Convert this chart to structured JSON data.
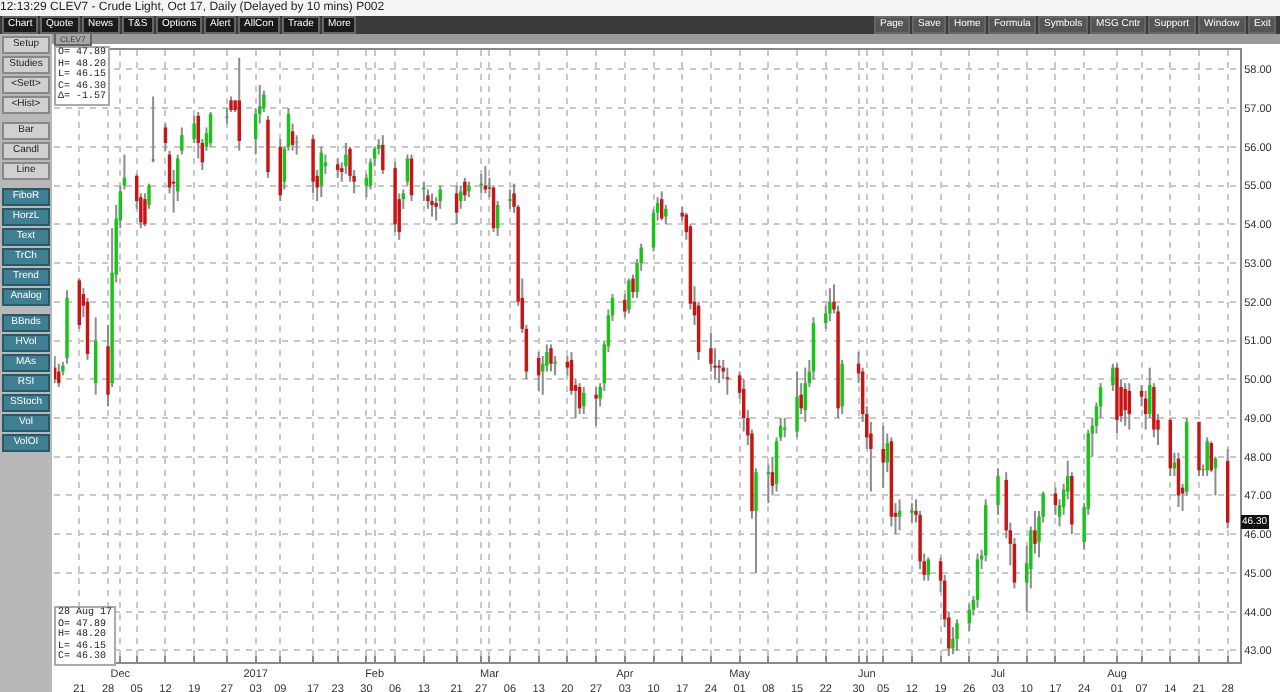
{
  "chart_data": {
    "type": "candlestick",
    "title": "CLEV7 - Crude Light, Oct 17, Daily (Delayed by 10 mins)",
    "x": [
      "2016-11-15",
      "2016-11-16",
      "2016-11-17",
      "2016-11-18",
      "2016-11-21",
      "2016-11-22",
      "2016-11-23",
      "2016-11-25",
      "2016-11-28",
      "2016-11-29",
      "2016-11-30",
      "2016-12-01",
      "2016-12-02",
      "2016-12-05",
      "2016-12-06",
      "2016-12-07",
      "2016-12-08",
      "2016-12-09",
      "2016-12-12",
      "2016-12-13",
      "2016-12-14",
      "2016-12-15",
      "2016-12-16",
      "2016-12-19",
      "2016-12-20",
      "2016-12-21",
      "2016-12-22",
      "2016-12-23",
      "2016-12-27",
      "2016-12-28",
      "2016-12-29",
      "2016-12-30",
      "2017-01-03",
      "2017-01-04",
      "2017-01-05",
      "2017-01-06",
      "2017-01-09",
      "2017-01-10",
      "2017-01-11",
      "2017-01-12",
      "2017-01-13",
      "2017-01-17",
      "2017-01-18",
      "2017-01-19",
      "2017-01-20",
      "2017-01-23",
      "2017-01-24",
      "2017-01-25",
      "2017-01-26",
      "2017-01-27",
      "2017-01-30",
      "2017-01-31",
      "2017-02-01",
      "2017-02-02",
      "2017-02-03",
      "2017-02-06",
      "2017-02-07",
      "2017-02-08",
      "2017-02-09",
      "2017-02-10",
      "2017-02-13",
      "2017-02-14",
      "2017-02-15",
      "2017-02-16",
      "2017-02-17",
      "2017-02-21",
      "2017-02-22",
      "2017-02-23",
      "2017-02-24",
      "2017-02-27",
      "2017-02-28",
      "2017-03-01",
      "2017-03-02",
      "2017-03-03",
      "2017-03-06",
      "2017-03-07",
      "2017-03-08",
      "2017-03-09",
      "2017-03-10",
      "2017-03-13",
      "2017-03-14",
      "2017-03-15",
      "2017-03-16",
      "2017-03-17",
      "2017-03-20",
      "2017-03-21",
      "2017-03-22",
      "2017-03-23",
      "2017-03-24",
      "2017-03-27",
      "2017-03-28",
      "2017-03-29",
      "2017-03-30",
      "2017-03-31",
      "2017-04-03",
      "2017-04-04",
      "2017-04-05",
      "2017-04-06",
      "2017-04-07",
      "2017-04-10",
      "2017-04-11",
      "2017-04-12",
      "2017-04-13",
      "2017-04-17",
      "2017-04-18",
      "2017-04-19",
      "2017-04-20",
      "2017-04-21",
      "2017-04-24",
      "2017-04-25",
      "2017-04-26",
      "2017-04-27",
      "2017-04-28",
      "2017-05-01",
      "2017-05-02",
      "2017-05-03",
      "2017-05-04",
      "2017-05-05",
      "2017-05-08",
      "2017-05-09",
      "2017-05-10",
      "2017-05-11",
      "2017-05-12",
      "2017-05-15",
      "2017-05-16",
      "2017-05-17",
      "2017-05-18",
      "2017-05-19",
      "2017-05-22",
      "2017-05-23",
      "2017-05-24",
      "2017-05-25",
      "2017-05-26",
      "2017-05-30",
      "2017-05-31",
      "2017-06-01",
      "2017-06-02",
      "2017-06-05",
      "2017-06-06",
      "2017-06-07",
      "2017-06-08",
      "2017-06-09",
      "2017-06-12",
      "2017-06-13",
      "2017-06-14",
      "2017-06-15",
      "2017-06-16",
      "2017-06-19",
      "2017-06-20",
      "2017-06-21",
      "2017-06-22",
      "2017-06-23",
      "2017-06-26",
      "2017-06-27",
      "2017-06-28",
      "2017-06-29",
      "2017-06-30",
      "2017-07-03",
      "2017-07-05",
      "2017-07-06",
      "2017-07-07",
      "2017-07-10",
      "2017-07-11",
      "2017-07-12",
      "2017-07-13",
      "2017-07-14",
      "2017-07-17",
      "2017-07-18",
      "2017-07-19",
      "2017-07-20",
      "2017-07-21",
      "2017-07-24",
      "2017-07-25",
      "2017-07-26",
      "2017-07-27",
      "2017-07-28",
      "2017-07-31",
      "2017-08-01",
      "2017-08-02",
      "2017-08-03",
      "2017-08-04",
      "2017-08-07",
      "2017-08-08",
      "2017-08-09",
      "2017-08-10",
      "2017-08-11",
      "2017-08-14",
      "2017-08-15",
      "2017-08-16",
      "2017-08-17",
      "2017-08-18",
      "2017-08-21",
      "2017-08-22",
      "2017-08-23",
      "2017-08-24",
      "2017-08-25",
      "2017-08-28"
    ],
    "ohlc": [
      [
        50.3,
        50.6,
        49.9,
        50.0
      ],
      [
        50.2,
        50.4,
        49.8,
        49.9
      ],
      [
        50.2,
        50.45,
        50.1,
        50.35
      ],
      [
        50.55,
        52.3,
        50.4,
        52.1
      ],
      [
        52.55,
        52.6,
        51.3,
        51.4
      ],
      [
        52.2,
        52.35,
        51.6,
        51.9
      ],
      [
        52.0,
        52.1,
        50.5,
        50.65
      ],
      [
        49.9,
        51.6,
        49.6,
        51.0
      ],
      [
        50.85,
        51.4,
        49.3,
        49.6
      ],
      [
        49.9,
        53.9,
        49.8,
        52.75
      ],
      [
        52.7,
        54.5,
        52.5,
        54.15
      ],
      [
        54.1,
        55.0,
        53.9,
        54.85
      ],
      [
        55.0,
        55.8,
        54.9,
        55.2
      ],
      [
        55.25,
        55.3,
        54.4,
        54.6
      ],
      [
        54.7,
        54.8,
        53.9,
        54.05
      ],
      [
        54.65,
        54.8,
        53.95,
        54.0
      ],
      [
        54.5,
        55.05,
        54.4,
        55.0
      ],
      [
        55.67,
        57.3,
        55.6,
        55.65
      ],
      [
        56.5,
        56.6,
        55.9,
        56.1
      ],
      [
        55.8,
        55.9,
        54.8,
        54.95
      ],
      [
        55.1,
        55.4,
        54.3,
        55.05
      ],
      [
        54.85,
        55.8,
        54.6,
        55.7
      ],
      [
        55.9,
        56.5,
        55.8,
        56.3
      ],
      [
        56.2,
        56.8,
        56.1,
        56.6
      ],
      [
        56.8,
        56.9,
        55.7,
        56.1
      ],
      [
        56.1,
        56.2,
        55.4,
        55.6
      ],
      [
        56.0,
        56.5,
        55.9,
        56.35
      ],
      [
        56.1,
        56.9,
        56.0,
        56.85
      ],
      [
        56.75,
        57.0,
        56.6,
        56.78
      ],
      [
        57.2,
        57.3,
        56.9,
        56.95
      ],
      [
        57.2,
        57.2,
        56.9,
        56.95
      ],
      [
        57.2,
        58.3,
        55.9,
        56.15
      ],
      [
        56.2,
        57.0,
        55.8,
        56.85
      ],
      [
        56.85,
        57.6,
        56.6,
        57.05
      ],
      [
        57.0,
        57.45,
        56.9,
        57.35
      ],
      [
        56.7,
        56.8,
        55.2,
        55.35
      ],
      [
        56.0,
        56.2,
        54.6,
        54.75
      ],
      [
        55.1,
        56.0,
        54.9,
        55.95
      ],
      [
        56.0,
        57.0,
        55.9,
        56.85
      ],
      [
        56.4,
        56.6,
        55.9,
        56.05
      ],
      [
        56.1,
        56.3,
        55.8,
        56.12
      ],
      [
        56.2,
        56.3,
        54.8,
        55.1
      ],
      [
        55.25,
        55.4,
        54.6,
        54.95
      ],
      [
        55.0,
        56.0,
        54.7,
        55.85
      ],
      [
        55.5,
        55.8,
        55.3,
        55.6
      ],
      [
        55.55,
        55.7,
        55.2,
        55.4
      ],
      [
        55.45,
        55.6,
        55.1,
        55.35
      ],
      [
        55.5,
        56.1,
        55.3,
        55.8
      ],
      [
        55.95,
        56.0,
        55.1,
        55.25
      ],
      [
        55.25,
        55.4,
        54.8,
        55.1
      ],
      [
        55.0,
        55.3,
        54.7,
        55.2
      ],
      [
        55.0,
        55.7,
        54.9,
        55.6
      ],
      [
        55.7,
        56.0,
        55.5,
        55.95
      ],
      [
        55.95,
        56.2,
        55.8,
        56.05
      ],
      [
        56.05,
        56.3,
        55.3,
        55.4
      ],
      [
        55.45,
        55.6,
        53.8,
        54.0
      ],
      [
        54.65,
        54.8,
        53.6,
        53.8
      ],
      [
        54.65,
        54.9,
        54.4,
        54.8
      ],
      [
        55.1,
        55.8,
        55.0,
        55.7
      ],
      [
        55.7,
        55.8,
        54.6,
        54.75
      ],
      [
        54.9,
        55.1,
        54.6,
        54.95
      ],
      [
        54.75,
        54.9,
        54.4,
        54.6
      ],
      [
        54.6,
        54.8,
        54.2,
        54.5
      ],
      [
        54.55,
        54.7,
        54.1,
        54.45
      ],
      [
        54.6,
        55.0,
        54.4,
        54.9
      ],
      [
        54.8,
        55.0,
        54.0,
        54.3
      ],
      [
        54.6,
        55.0,
        54.4,
        54.85
      ],
      [
        55.1,
        55.2,
        54.6,
        54.75
      ],
      [
        54.85,
        55.1,
        54.7,
        55.0
      ],
      [
        55.0,
        55.3,
        54.8,
        55.05
      ],
      [
        55.0,
        55.5,
        54.8,
        54.9
      ],
      [
        54.95,
        55.2,
        54.7,
        54.92
      ],
      [
        54.95,
        55.0,
        53.8,
        53.9
      ],
      [
        53.9,
        54.6,
        53.7,
        54.5
      ],
      [
        54.6,
        54.9,
        54.4,
        54.65
      ],
      [
        54.8,
        55.05,
        54.3,
        54.45
      ],
      [
        54.45,
        54.5,
        51.9,
        52.0
      ],
      [
        52.1,
        52.6,
        51.2,
        51.3
      ],
      [
        51.3,
        51.4,
        50.0,
        50.2
      ],
      [
        50.55,
        50.7,
        49.7,
        50.1
      ],
      [
        50.2,
        50.6,
        49.6,
        50.4
      ],
      [
        50.35,
        50.9,
        50.2,
        50.7
      ],
      [
        50.8,
        50.9,
        50.2,
        50.4
      ],
      [
        50.4,
        50.6,
        50.1,
        50.45
      ],
      [
        50.45,
        50.6,
        50.1,
        50.3
      ],
      [
        50.5,
        50.7,
        49.6,
        49.7
      ],
      [
        49.85,
        50.0,
        49.0,
        49.7
      ],
      [
        49.8,
        49.9,
        49.1,
        49.25
      ],
      [
        49.3,
        49.8,
        49.1,
        49.65
      ],
      [
        49.6,
        49.8,
        48.8,
        49.5
      ],
      [
        49.5,
        49.9,
        49.3,
        49.8
      ],
      [
        49.9,
        51.0,
        49.7,
        50.9
      ],
      [
        50.85,
        51.8,
        50.7,
        51.65
      ],
      [
        51.65,
        52.2,
        51.5,
        52.1
      ],
      [
        52.05,
        52.2,
        51.6,
        51.75
      ],
      [
        51.8,
        52.6,
        51.7,
        52.55
      ],
      [
        52.6,
        52.7,
        52.1,
        52.25
      ],
      [
        52.25,
        53.1,
        52.1,
        53.0
      ],
      [
        53.0,
        53.5,
        52.8,
        53.4
      ],
      [
        53.4,
        54.4,
        53.3,
        54.3
      ],
      [
        54.3,
        54.7,
        54.1,
        54.55
      ],
      [
        54.65,
        54.85,
        54.1,
        54.15
      ],
      [
        54.2,
        54.5,
        54.0,
        54.4
      ],
      [
        54.3,
        54.45,
        54.1,
        54.2
      ],
      [
        54.25,
        54.3,
        53.6,
        53.8
      ],
      [
        53.95,
        54.0,
        51.8,
        51.95
      ],
      [
        52.0,
        52.4,
        51.4,
        51.65
      ],
      [
        51.9,
        52.0,
        50.5,
        50.7
      ],
      [
        50.8,
        51.2,
        50.2,
        50.4
      ],
      [
        50.35,
        50.8,
        50.0,
        50.3
      ],
      [
        50.35,
        50.5,
        49.9,
        50.3
      ],
      [
        50.3,
        50.5,
        50.0,
        50.2
      ],
      [
        50.05,
        50.3,
        49.6,
        50.0
      ],
      [
        50.1,
        50.2,
        49.5,
        49.65
      ],
      [
        49.75,
        50.0,
        48.65,
        49.0
      ],
      [
        49.0,
        49.2,
        48.3,
        48.55
      ],
      [
        48.6,
        48.7,
        46.4,
        46.6
      ],
      [
        46.6,
        47.7,
        45.0,
        47.6
      ],
      [
        47.55,
        47.8,
        46.8,
        47.6
      ],
      [
        47.6,
        48.0,
        47.0,
        47.25
      ],
      [
        47.3,
        48.5,
        47.1,
        48.4
      ],
      [
        48.5,
        49.0,
        48.4,
        48.8
      ],
      [
        48.7,
        49.0,
        48.5,
        48.75
      ],
      [
        48.65,
        50.2,
        48.5,
        49.55
      ],
      [
        49.6,
        49.9,
        49.1,
        49.25
      ],
      [
        49.2,
        50.3,
        48.9,
        49.9
      ],
      [
        49.9,
        50.5,
        49.8,
        50.2
      ],
      [
        50.2,
        51.6,
        50.0,
        51.45
      ],
      [
        51.45,
        51.9,
        51.3,
        51.7
      ],
      [
        51.7,
        52.35,
        51.5,
        52.0
      ],
      [
        52.0,
        52.45,
        51.7,
        51.8
      ],
      [
        51.75,
        51.9,
        49.0,
        49.25
      ],
      [
        49.3,
        50.5,
        49.1,
        50.4
      ],
      [
        50.4,
        50.7,
        49.9,
        50.15
      ],
      [
        50.2,
        50.3,
        48.9,
        49.1
      ],
      [
        49.1,
        49.3,
        48.2,
        48.5
      ],
      [
        48.6,
        48.9,
        47.1,
        48.2
      ],
      [
        48.2,
        48.8,
        47.2,
        47.85
      ],
      [
        47.85,
        48.6,
        47.6,
        48.35
      ],
      [
        48.4,
        48.5,
        46.2,
        46.45
      ],
      [
        46.55,
        46.8,
        46.0,
        46.45
      ],
      [
        46.45,
        46.9,
        46.1,
        46.6
      ],
      [
        46.55,
        46.8,
        46.3,
        46.62
      ],
      [
        46.6,
        46.9,
        46.3,
        46.5
      ],
      [
        46.5,
        46.6,
        45.1,
        45.3
      ],
      [
        45.3,
        45.5,
        44.8,
        44.95
      ],
      [
        44.95,
        45.4,
        44.8,
        45.35
      ],
      [
        45.3,
        45.4,
        44.5,
        44.8
      ],
      [
        44.8,
        44.95,
        43.6,
        43.8
      ],
      [
        43.85,
        44.0,
        42.85,
        43.05
      ],
      [
        43.05,
        43.6,
        42.9,
        43.3
      ],
      [
        43.3,
        43.8,
        43.0,
        43.7
      ],
      [
        43.7,
        44.2,
        43.5,
        44.05
      ],
      [
        44.05,
        44.4,
        43.9,
        44.3
      ],
      [
        44.3,
        45.5,
        44.1,
        45.35
      ],
      [
        45.35,
        45.6,
        45.1,
        45.45
      ],
      [
        45.45,
        46.9,
        45.3,
        46.75
      ],
      [
        46.75,
        47.7,
        46.5,
        47.5
      ],
      [
        47.4,
        47.6,
        45.9,
        46.1
      ],
      [
        46.1,
        46.3,
        45.2,
        45.75
      ],
      [
        45.75,
        45.9,
        44.6,
        44.75
      ],
      [
        44.75,
        45.7,
        44.0,
        45.25
      ],
      [
        45.1,
        46.2,
        44.6,
        46.1
      ],
      [
        46.1,
        46.6,
        45.5,
        45.75
      ],
      [
        45.8,
        46.6,
        45.4,
        46.45
      ],
      [
        46.45,
        47.1,
        46.3,
        47.05
      ],
      [
        47.05,
        47.2,
        46.5,
        46.75
      ],
      [
        46.45,
        46.9,
        46.2,
        46.75
      ],
      [
        46.7,
        47.3,
        46.5,
        47.15
      ],
      [
        47.1,
        47.9,
        46.9,
        47.5
      ],
      [
        47.5,
        47.6,
        46.0,
        46.25
      ],
      [
        45.8,
        46.8,
        45.6,
        46.7
      ],
      [
        46.65,
        48.7,
        46.5,
        48.6
      ],
      [
        48.6,
        49.0,
        48.0,
        48.8
      ],
      [
        48.8,
        49.4,
        48.6,
        49.3
      ],
      [
        49.3,
        49.9,
        49.0,
        49.8
      ],
      [
        49.85,
        50.4,
        49.7,
        50.3
      ],
      [
        50.3,
        50.4,
        48.6,
        48.95
      ],
      [
        49.8,
        50.0,
        48.9,
        49.05
      ],
      [
        49.75,
        49.9,
        48.8,
        49.2
      ],
      [
        49.7,
        49.9,
        48.7,
        49.1
      ],
      [
        49.7,
        49.85,
        49.3,
        49.55
      ],
      [
        49.5,
        49.7,
        48.7,
        49.1
      ],
      [
        49.1,
        50.3,
        49.0,
        49.85
      ],
      [
        49.8,
        49.9,
        48.5,
        48.7
      ],
      [
        48.95,
        49.1,
        48.3,
        48.7
      ],
      [
        48.95,
        49.0,
        47.5,
        47.7
      ],
      [
        47.7,
        48.1,
        47.5,
        47.85
      ],
      [
        47.95,
        48.1,
        46.7,
        47.0
      ],
      [
        47.2,
        47.3,
        46.6,
        47.05
      ],
      [
        47.1,
        49.0,
        47.0,
        48.9
      ],
      [
        48.9,
        48.9,
        47.5,
        47.65
      ],
      [
        47.65,
        47.8,
        47.5,
        47.68
      ],
      [
        47.65,
        48.5,
        47.5,
        48.4
      ],
      [
        48.35,
        48.4,
        47.6,
        47.65
      ],
      [
        47.7,
        48.0,
        47.0,
        47.95
      ],
      [
        47.89,
        48.2,
        46.15,
        46.3
      ]
    ],
    "xlim": [
      "2016-11-14T20:00",
      "2017-08-31"
    ],
    "xticks": [
      {
        "value": "2016-11-21",
        "label": "21"
      },
      {
        "value": "2016-11-28",
        "label": "28"
      },
      {
        "value": "2016-12-05",
        "label": "05"
      },
      {
        "value": "2016-12-12",
        "label": "12"
      },
      {
        "value": "2016-12-19",
        "label": "19"
      },
      {
        "value": "2016-12-27",
        "label": "27"
      },
      {
        "value": "2017-01-03",
        "label": "03"
      },
      {
        "value": "2017-01-09",
        "label": "09"
      },
      {
        "value": "2017-01-17",
        "label": "17"
      },
      {
        "value": "2017-01-23",
        "label": "23"
      },
      {
        "value": "2017-01-30",
        "label": "30"
      },
      {
        "value": "2017-02-06",
        "label": "06"
      },
      {
        "value": "2017-02-13",
        "label": "13"
      },
      {
        "value": "2017-02-21",
        "label": "21"
      },
      {
        "value": "2017-02-27",
        "label": "27"
      },
      {
        "value": "2017-03-06",
        "label": "06"
      },
      {
        "value": "2017-03-13",
        "label": "13"
      },
      {
        "value": "2017-03-20",
        "label": "20"
      },
      {
        "value": "2017-03-27",
        "label": "27"
      },
      {
        "value": "2017-04-03",
        "label": "03"
      },
      {
        "value": "2017-04-10",
        "label": "10"
      },
      {
        "value": "2017-04-17",
        "label": "17"
      },
      {
        "value": "2017-04-24",
        "label": "24"
      },
      {
        "value": "2017-05-01",
        "label": "01"
      },
      {
        "value": "2017-05-08",
        "label": "08"
      },
      {
        "value": "2017-05-15",
        "label": "15"
      },
      {
        "value": "2017-05-22",
        "label": "22"
      },
      {
        "value": "2017-05-30",
        "label": "30"
      },
      {
        "value": "2017-06-05",
        "label": "05"
      },
      {
        "value": "2017-06-12",
        "label": "12"
      },
      {
        "value": "2017-06-19",
        "label": "19"
      },
      {
        "value": "2017-06-26",
        "label": "26"
      },
      {
        "value": "2017-07-03",
        "label": "03"
      },
      {
        "value": "2017-07-10",
        "label": "10"
      },
      {
        "value": "2017-07-17",
        "label": "17"
      },
      {
        "value": "2017-07-24",
        "label": "24"
      },
      {
        "value": "2017-08-01",
        "label": "01"
      },
      {
        "value": "2017-08-07",
        "label": "07"
      },
      {
        "value": "2017-08-14",
        "label": "14"
      },
      {
        "value": "2017-08-21",
        "label": "21"
      },
      {
        "value": "2017-08-28",
        "label": "28"
      }
    ],
    "x2lim": [
      "2016-11-14T20:00",
      "2017-08-31"
    ],
    "x2ticks": [
      {
        "value": "2016-12-01",
        "label": "Dec"
      },
      {
        "value": "2017-01-03",
        "label": "2017"
      },
      {
        "value": "2017-02-01",
        "label": "Feb"
      },
      {
        "value": "2017-03-01",
        "label": "Mar"
      },
      {
        "value": "2017-04-03",
        "label": "Apr"
      },
      {
        "value": "2017-05-01",
        "label": "May"
      },
      {
        "value": "2017-06-01",
        "label": "Jun"
      },
      {
        "value": "2017-07-03",
        "label": "Jul"
      },
      {
        "value": "2017-08-01",
        "label": "Aug"
      }
    ],
    "ylim": [
      42.7,
      58.5
    ],
    "yticks": [
      {
        "value": 43,
        "label": "43.00"
      },
      {
        "value": 44,
        "label": "44.00"
      },
      {
        "value": 45,
        "label": "45.00"
      },
      {
        "value": 46,
        "label": "46.00"
      },
      {
        "value": 47,
        "label": "47.00"
      },
      {
        "value": 48,
        "label": "48.00"
      },
      {
        "value": 49,
        "label": "49.00"
      },
      {
        "value": 50,
        "label": "50.00"
      },
      {
        "value": 51,
        "label": "51.00"
      },
      {
        "value": 52,
        "label": "52.00"
      },
      {
        "value": 53,
        "label": "53.00"
      },
      {
        "value": 54,
        "label": "54.00"
      },
      {
        "value": 55,
        "label": "55.00"
      },
      {
        "value": 56,
        "label": "56.00"
      },
      {
        "value": 57,
        "label": "57.00"
      },
      {
        "value": 58,
        "label": "58.00"
      }
    ],
    "grid": true,
    "annotations": [
      "12:13:29",
      "O= 47.89\nH= 48.20\nL= 46.15\nC= 46.30\nΔ= -1.57",
      "28 Aug 17\nO= 47.89\nH= 48.20\nL= 46.15\nC= 46.30",
      "46.30",
      "P002",
      "CLEV7",
      "Chart",
      "Quote",
      "News",
      "T&S",
      "Options",
      "Alert",
      "AllCon",
      "Trade",
      "More",
      "Page",
      "Save",
      "Home",
      "Formula",
      "Symbols",
      "MSG Cntr",
      "Support",
      "Window",
      "Exit",
      "Setup",
      "Studies",
      "<Sett>",
      "<Hist>",
      "Bar",
      "Candl",
      "Line",
      "FiboR",
      "HorzL",
      "Text",
      "TrCh",
      "Trend",
      "Analog",
      "BBnds",
      "HVol",
      "MAs",
      "RSI",
      "SStoch",
      "Vol",
      "VolOI"
    ]
  }
}
